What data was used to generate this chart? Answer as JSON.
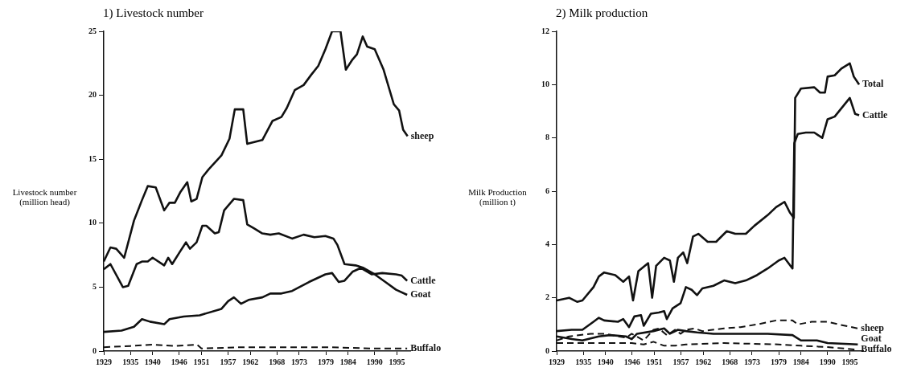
{
  "chart_data": [
    {
      "type": "line",
      "title": "1) Livestock number",
      "ylabel": "Livestock number (million head)",
      "xlim": [
        1929,
        1998
      ],
      "xticks": [
        1929,
        1935,
        1940,
        1946,
        1951,
        1957,
        1962,
        1968,
        1973,
        1979,
        1984,
        1990,
        1995
      ],
      "ylim": [
        0,
        25
      ],
      "yticks": [
        0,
        5,
        10,
        15,
        20,
        25
      ],
      "grid": false,
      "legend": false,
      "marker": "none",
      "series": [
        {
          "name": "sheep",
          "color": "#111111",
          "line_style": "solid",
          "x": [
            1929,
            1930.5,
            1931.8,
            1933.6,
            1935.8,
            1937.6,
            1938.9,
            1940.7,
            1942.6,
            1943.8,
            1945,
            1946.2,
            1947.8,
            1948.7,
            1949.9,
            1951.2,
            1952.6,
            1955.5,
            1957.3,
            1958.5,
            1960.4,
            1961.3,
            1964.7,
            1967,
            1969,
            1970.2,
            1972,
            1974,
            1975.7,
            1977.3,
            1978.9,
            1980.4,
            1982.3,
            1983.5,
            1985,
            1986,
            1987.3,
            1988.3,
            1990,
            1992,
            1994.3,
            1995.5,
            1996.4,
            1997.4
          ],
          "values": [
            7.0,
            8.1,
            8.0,
            7.3,
            10.2,
            11.8,
            12.9,
            12.8,
            11.0,
            11.6,
            11.6,
            12.4,
            13.2,
            11.7,
            11.9,
            13.6,
            14.2,
            15.3,
            16.6,
            18.9,
            18.9,
            16.2,
            16.5,
            18.0,
            18.3,
            19.0,
            20.4,
            20.8,
            21.6,
            22.3,
            23.6,
            25,
            25,
            22.0,
            22.8,
            23.2,
            24.6,
            23.8,
            23.6,
            22.0,
            19.3,
            18.8,
            17.3,
            16.8
          ]
        },
        {
          "name": "Goat",
          "color": "#111111",
          "line_style": "solid",
          "x": [
            1929,
            1930.5,
            1933.3,
            1934.5,
            1936.4,
            1937.6,
            1938.9,
            1940,
            1942.6,
            1943.5,
            1944.4,
            1946.2,
            1947.5,
            1948.4,
            1949.9,
            1951.2,
            1952.1,
            1954,
            1954.9,
            1956.1,
            1958.3,
            1960.4,
            1961.3,
            1962.8,
            1964.7,
            1966.5,
            1968.4,
            1971.4,
            1974,
            1976.4,
            1978.9,
            1980.7,
            1981.6,
            1983.2,
            1985.7,
            1987.5,
            1990,
            1992.4,
            1994.8,
            1997.3
          ],
          "values": [
            6.4,
            6.8,
            5.0,
            5.1,
            6.8,
            7.0,
            7.0,
            7.3,
            6.7,
            7.3,
            6.8,
            7.8,
            8.5,
            8.0,
            8.5,
            9.8,
            9.8,
            9.2,
            9.3,
            11.0,
            11.9,
            11.8,
            9.9,
            9.6,
            9.2,
            9.1,
            9.2,
            8.8,
            9.1,
            8.9,
            9.0,
            8.8,
            8.3,
            6.8,
            6.7,
            6.5,
            6.0,
            5.4,
            4.8,
            4.4
          ]
        },
        {
          "name": "Cattle",
          "color": "#111111",
          "line_style": "solid",
          "x": [
            1929,
            1933,
            1935.8,
            1937.6,
            1939.4,
            1942.6,
            1943.8,
            1947,
            1950.6,
            1955.5,
            1957,
            1958.3,
            1959.9,
            1961.6,
            1964.7,
            1966.5,
            1969,
            1971.4,
            1975.2,
            1978.9,
            1980.4,
            1981.9,
            1983.2,
            1985,
            1986.9,
            1989.3,
            1991.7,
            1994.8,
            1996.1,
            1997.3
          ],
          "values": [
            1.5,
            1.6,
            1.9,
            2.5,
            2.3,
            2.1,
            2.5,
            2.7,
            2.8,
            3.3,
            3.9,
            4.2,
            3.7,
            4.0,
            4.2,
            4.5,
            4.5,
            4.7,
            5.4,
            6.0,
            6.1,
            5.4,
            5.5,
            6.2,
            6.5,
            6.0,
            6.1,
            6.0,
            5.9,
            5.5
          ]
        },
        {
          "name": "Buffalo",
          "color": "#111111",
          "line_style": "dashed",
          "x": [
            1929,
            1935,
            1940,
            1945,
            1950,
            1951,
            1960,
            1970,
            1980,
            1990,
            1997.3
          ],
          "values": [
            0.3,
            0.4,
            0.5,
            0.4,
            0.5,
            0.2,
            0.3,
            0.3,
            0.3,
            0.2,
            0.2
          ]
        }
      ]
    },
    {
      "type": "line",
      "title": "2) Milk production",
      "ylabel": "Milk Production (million t)",
      "xlim": [
        1929,
        1998
      ],
      "xticks": [
        1929,
        1935,
        1940,
        1946,
        1951,
        1957,
        1962,
        1968,
        1973,
        1979,
        1984,
        1990,
        1995
      ],
      "ylim": [
        0,
        12
      ],
      "yticks": [
        0,
        2,
        4,
        6,
        8,
        10,
        12
      ],
      "grid": false,
      "legend": false,
      "marker": "none",
      "series": [
        {
          "name": "Total",
          "color": "#111111",
          "line_style": "solid",
          "x": [
            1929,
            1931.8,
            1933.6,
            1934.8,
            1937.3,
            1938.5,
            1939.7,
            1942.2,
            1944,
            1945.3,
            1946.2,
            1947.4,
            1949.6,
            1950.5,
            1951.4,
            1953.2,
            1954.5,
            1955.4,
            1956.3,
            1957.5,
            1958.4,
            1959.7,
            1960.9,
            1963,
            1964.9,
            1967.3,
            1969.2,
            1971.6,
            1973.5,
            1976.5,
            1978.4,
            1980.3,
            1981.5,
            1982.4,
            1982.7,
            1984,
            1987,
            1988.3,
            1989.4,
            1990,
            1991.6,
            1993.1,
            1995,
            1995.9,
            1997.1
          ],
          "values": [
            1.9,
            2.0,
            1.85,
            1.9,
            2.4,
            2.8,
            2.95,
            2.85,
            2.6,
            2.8,
            1.9,
            3.0,
            3.3,
            2.0,
            3.2,
            3.5,
            3.4,
            2.6,
            3.5,
            3.7,
            3.3,
            4.3,
            4.4,
            4.1,
            4.1,
            4.5,
            4.4,
            4.4,
            4.7,
            5.1,
            5.4,
            5.6,
            5.2,
            5.0,
            9.5,
            9.85,
            9.9,
            9.7,
            9.7,
            10.3,
            10.35,
            10.6,
            10.8,
            10.3,
            10.0
          ]
        },
        {
          "name": "Cattle",
          "color": "#111111",
          "line_style": "solid",
          "x": [
            1929,
            1932.4,
            1934.8,
            1937.3,
            1938.5,
            1939.7,
            1942.8,
            1944,
            1945.3,
            1946.5,
            1948,
            1948.6,
            1950.2,
            1952,
            1953.2,
            1953.8,
            1955.1,
            1956.9,
            1958.1,
            1959.4,
            1960.6,
            1961.8,
            1964.3,
            1966.7,
            1969.2,
            1971.6,
            1974.1,
            1976.5,
            1979,
            1980.3,
            1982.1,
            1982.5,
            1983.3,
            1985.1,
            1987,
            1988.8,
            1990,
            1991.6,
            1995,
            1996.2,
            1997.1
          ],
          "values": [
            0.75,
            0.8,
            0.8,
            1.1,
            1.25,
            1.15,
            1.1,
            1.2,
            0.9,
            1.3,
            1.35,
            0.95,
            1.4,
            1.45,
            1.5,
            1.2,
            1.6,
            1.8,
            2.4,
            2.3,
            2.1,
            2.35,
            2.45,
            2.65,
            2.55,
            2.65,
            2.85,
            3.1,
            3.4,
            3.5,
            3.1,
            7.8,
            8.15,
            8.2,
            8.2,
            8.0,
            8.7,
            8.8,
            9.5,
            8.9,
            8.85
          ]
        },
        {
          "name": "sheep",
          "color": "#111111",
          "line_style": "dashed",
          "x": [
            1929,
            1931.8,
            1936.7,
            1939.7,
            1944.6,
            1945.9,
            1948.6,
            1950.8,
            1952,
            1953.8,
            1955.7,
            1956.9,
            1958.1,
            1960,
            1961.8,
            1966.7,
            1970.4,
            1974.1,
            1978.4,
            1982.1,
            1983.3,
            1986.4,
            1990,
            1992.5,
            1996.8
          ],
          "values": [
            0.4,
            0.55,
            0.65,
            0.65,
            0.5,
            0.65,
            0.4,
            0.8,
            0.85,
            0.6,
            0.8,
            0.65,
            0.8,
            0.85,
            0.75,
            0.85,
            0.9,
            1.0,
            1.15,
            1.15,
            1.0,
            1.1,
            1.1,
            1.0,
            0.85
          ]
        },
        {
          "name": "Goat",
          "color": "#111111",
          "line_style": "solid",
          "x": [
            1929,
            1932.4,
            1934.8,
            1938.5,
            1941,
            1944.6,
            1945.9,
            1947.1,
            1950.8,
            1953.2,
            1954.5,
            1956.3,
            1958.1,
            1960.6,
            1964.3,
            1976.5,
            1982.1,
            1984,
            1987.6,
            1990,
            1996.8
          ],
          "values": [
            0.55,
            0.45,
            0.4,
            0.55,
            0.6,
            0.55,
            0.45,
            0.65,
            0.75,
            0.85,
            0.65,
            0.8,
            0.75,
            0.7,
            0.65,
            0.65,
            0.6,
            0.4,
            0.4,
            0.3,
            0.25
          ]
        },
        {
          "name": "Buffalo",
          "color": "#111111",
          "line_style": "dashed",
          "x": [
            1929,
            1939.7,
            1945.9,
            1948.6,
            1950.8,
            1953.2,
            1955.7,
            1958.1,
            1966.7,
            1979,
            1984,
            1990,
            1996.8
          ],
          "values": [
            0.3,
            0.3,
            0.3,
            0.25,
            0.35,
            0.2,
            0.2,
            0.25,
            0.3,
            0.25,
            0.2,
            0.15,
            0.05
          ]
        }
      ]
    }
  ]
}
